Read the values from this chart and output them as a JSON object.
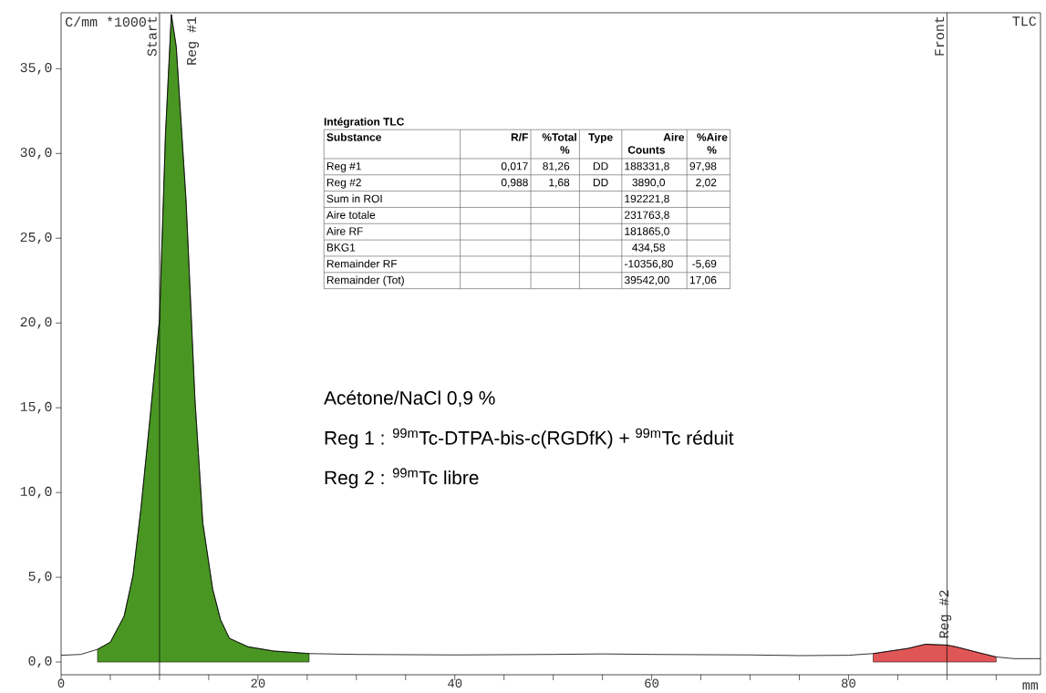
{
  "chart_data": {
    "type": "line",
    "title": "TLC",
    "xlabel": "mm",
    "ylabel": "C/mm *1000",
    "xlim": [
      0,
      99.5
    ],
    "ylim": [
      -0.75,
      38.3
    ],
    "xticks": [
      0,
      {
        "value": 5,
        "label": null
      },
      {
        "value": 10,
        "label": null
      },
      {
        "value": 15,
        "label": null
      },
      20,
      {
        "value": 25,
        "label": null
      },
      {
        "value": 30,
        "label": null
      },
      {
        "value": 35,
        "label": null
      },
      40,
      {
        "value": 45,
        "label": null
      },
      {
        "value": 50,
        "label": null
      },
      {
        "value": 55,
        "label": null
      },
      60,
      {
        "value": 65,
        "label": null
      },
      {
        "value": 70,
        "label": null
      },
      {
        "value": 75,
        "label": null
      },
      80,
      {
        "value": 85,
        "label": null
      },
      {
        "value": 90,
        "label": null
      },
      {
        "value": 95,
        "label": null
      }
    ],
    "yticks": [
      {
        "value": 0,
        "label": "0,0"
      },
      {
        "value": 5,
        "label": "5,0"
      },
      {
        "value": 10,
        "label": "10,0"
      },
      {
        "value": 15,
        "label": "15,0"
      },
      {
        "value": 20,
        "label": "20,0"
      },
      {
        "value": 25,
        "label": "25,0"
      },
      {
        "value": 30,
        "label": "30,0"
      },
      {
        "value": 35,
        "label": "35,0"
      }
    ],
    "series": [
      {
        "type": "area",
        "color": "#4a9623",
        "x": [
          3.7,
          5.0,
          6.4,
          7.3,
          8.1,
          9.0,
          10.0,
          10.6,
          11.2,
          11.7,
          12.7,
          13.6,
          14.4,
          15.4,
          16.2,
          17.1,
          19.0,
          21.6,
          25.2
        ],
        "values": [
          0.75,
          1.17,
          2.7,
          5.1,
          9.0,
          14.2,
          20.2,
          31.1,
          38.2,
          36.3,
          27.2,
          15.5,
          8.2,
          4.3,
          2.5,
          1.4,
          0.9,
          0.65,
          0.5
        ]
      },
      {
        "type": "area",
        "color": "#e05555",
        "x": [
          82.5,
          86.0,
          87.8,
          90.0,
          90.9,
          93.6,
          95.0
        ],
        "values": [
          0.5,
          0.8,
          1.05,
          1.0,
          0.9,
          0.5,
          0.3
        ]
      },
      {
        "color": "#000000",
        "x": [
          0,
          2,
          3.7,
          5.0,
          6.4,
          7.3,
          8.1,
          9.0,
          10.0,
          10.6,
          11.2,
          11.7,
          12.7,
          13.6,
          14.4,
          15.4,
          16.2,
          17.1,
          19.0,
          21.6,
          25.2,
          30,
          40,
          50,
          55,
          60,
          70,
          75,
          80,
          82.5,
          86.0,
          87.8,
          90.0,
          90.9,
          93.6,
          95.0,
          96.8,
          99.5
        ],
        "values": [
          0.4,
          0.45,
          0.75,
          1.17,
          2.7,
          5.1,
          9.0,
          14.2,
          20.2,
          31.1,
          38.2,
          36.3,
          27.2,
          15.5,
          8.2,
          4.3,
          2.5,
          1.4,
          0.9,
          0.65,
          0.5,
          0.45,
          0.42,
          0.45,
          0.48,
          0.45,
          0.42,
          0.38,
          0.4,
          0.5,
          0.8,
          1.05,
          1.0,
          0.9,
          0.5,
          0.3,
          0.2,
          0.2
        ]
      }
    ],
    "ref_lines": [
      {
        "axis": "x",
        "value": 10,
        "label": "Start",
        "color": "#000000"
      },
      {
        "axis": "x",
        "value": 90,
        "label": "Front",
        "color": "#000000"
      }
    ],
    "annotations": [
      {
        "text": "Reg #1",
        "x": 11.2,
        "y": 38.2
      },
      {
        "text": "Reg #2",
        "x": 87.8,
        "y": 1.05
      },
      "Intégration TLC",
      "Substance",
      "R/F",
      "%Total %",
      "Type",
      "Aire Counts",
      "%Aire %",
      "Reg #1",
      "0,017",
      "81,26",
      "DD",
      "188331,8",
      "97,98",
      "Reg #2",
      "0,988",
      "1,68",
      "DD",
      "3890,0",
      "2,02",
      "Sum in ROI",
      "192221,8",
      "Aire totale",
      "231763,8",
      "Aire RF",
      "181865,0",
      "BKG1",
      "434,58",
      "Remainder RF",
      "-10356,80",
      "-5,69",
      "Remainder (Tot)",
      "39542,00",
      "17,06",
      "Acétone/NaCl 0,9 %",
      "Reg 1 : $^{99m}$Tc-DTPA-bis-c(RGDfK) + $^{99m}$Tc réduit",
      "Reg 2 : $^{99m}$Tc libre"
    ]
  }
}
